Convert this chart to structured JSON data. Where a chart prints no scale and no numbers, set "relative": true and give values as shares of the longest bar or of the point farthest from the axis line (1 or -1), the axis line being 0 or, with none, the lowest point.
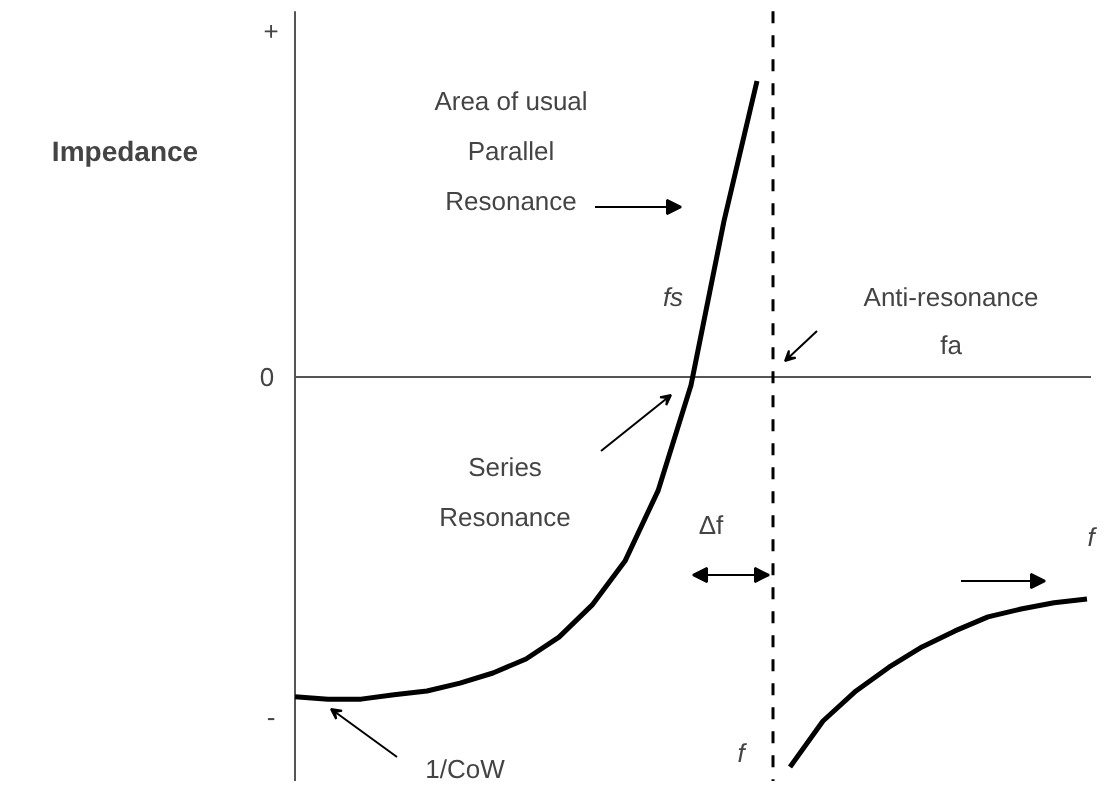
{
  "chart_data": {
    "type": "line",
    "relative": true,
    "ylabel": "Impedance",
    "categories": [
      null,
      null,
      null,
      null,
      null,
      null,
      null,
      null,
      null,
      null,
      null,
      null,
      null,
      null,
      null,
      null,
      null,
      null,
      null,
      null,
      null,
      null,
      null,
      null,
      null
    ],
    "series": [
      {
        "color": "#000000",
        "values": [
          -0.82,
          -0.826,
          -0.826,
          -0.815,
          -0.805,
          -0.785,
          -0.759,
          -0.723,
          -0.667,
          -0.585,
          -0.472,
          -0.292,
          -0.021,
          0.4,
          0.759,
          null,
          null,
          null,
          null,
          null,
          null,
          null,
          null,
          null,
          null
        ]
      },
      {
        "color": "#000000",
        "values": [
          null,
          null,
          null,
          null,
          null,
          null,
          null,
          null,
          null,
          null,
          null,
          null,
          null,
          null,
          null,
          -1,
          -0.882,
          -0.805,
          -0.744,
          -0.692,
          -0.651,
          -0.615,
          -0.595,
          -0.579,
          -0.569
        ]
      }
    ],
    "annotations": [
      "+",
      "0",
      "-",
      "Area of usual\nParallel\nResonance",
      "fs",
      "Series\nResonance",
      "Δf",
      "f",
      "f",
      "1/CoW",
      "Anti-resonance\nfa"
    ],
    "grid": false,
    "marker": "none",
    "line_style": "solid"
  }
}
